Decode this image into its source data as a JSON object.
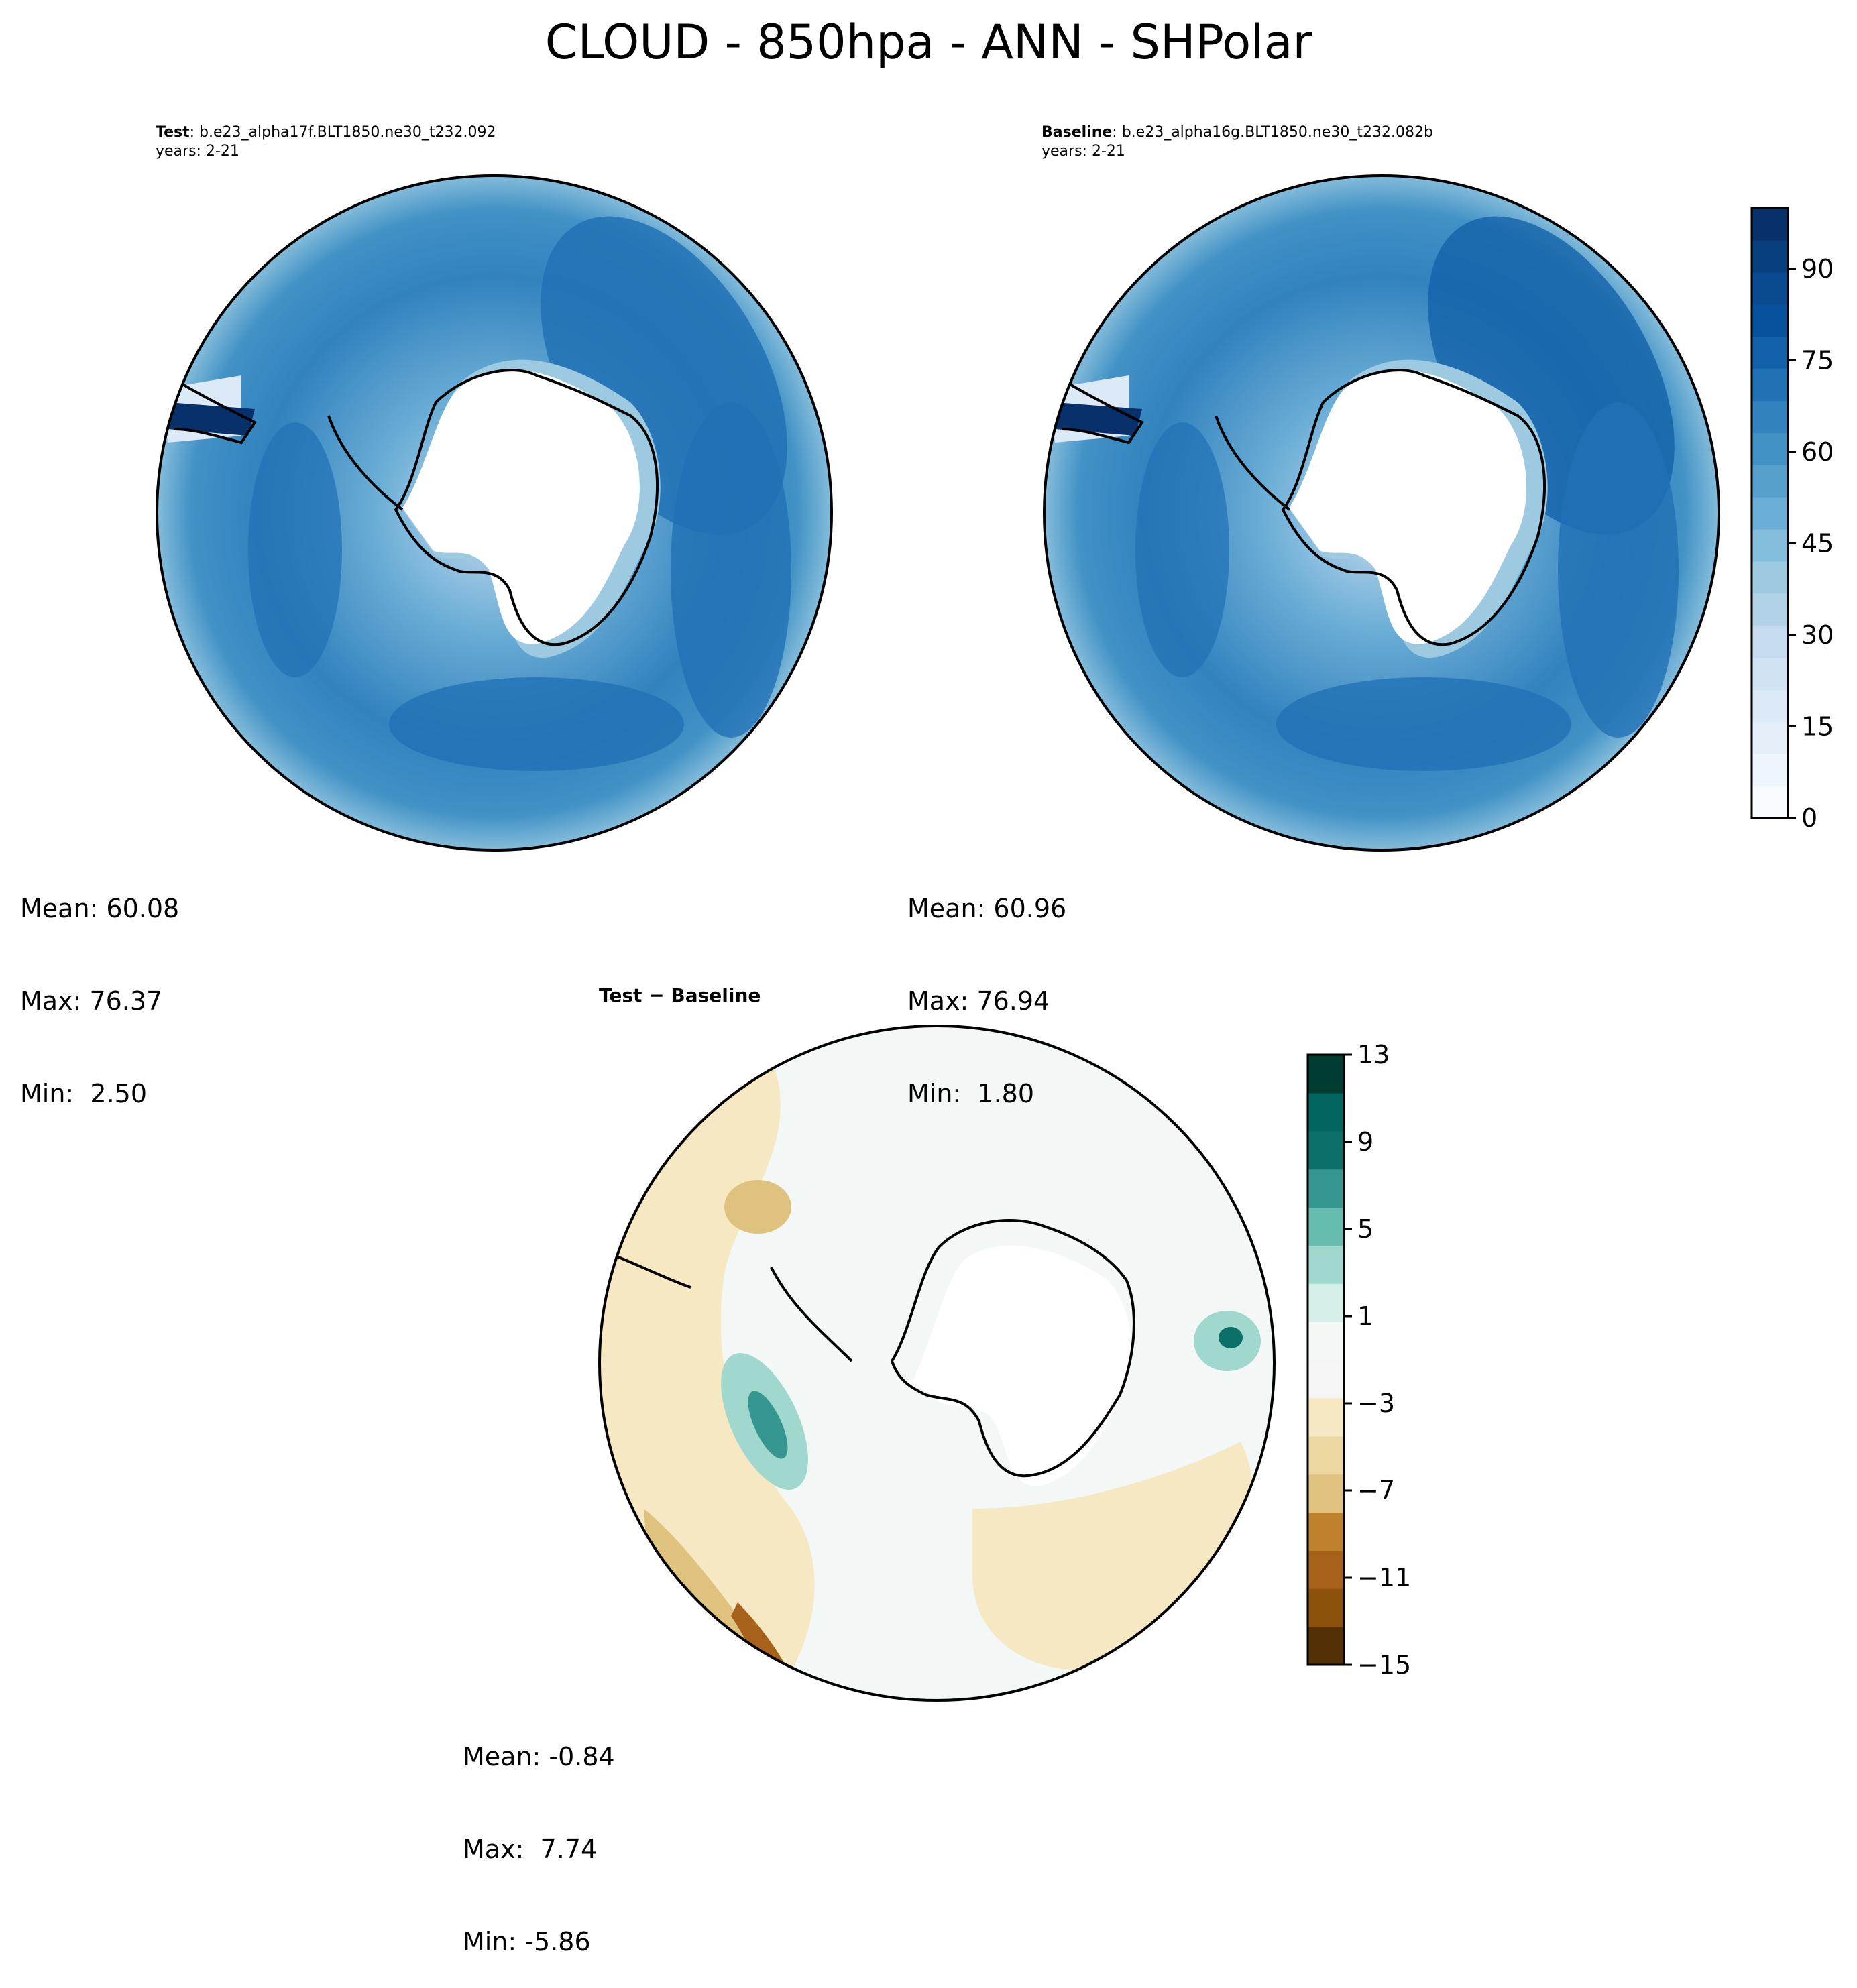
{
  "title": "CLOUD - 850hpa - ANN - SHPolar",
  "chart_data": [
    {
      "type": "heatmap",
      "name_label": "Test",
      "case": ": b.e23_alpha17f.BLT1850.ne30_t232.092",
      "years": "years: 2-21",
      "stats": {
        "mean": "Mean: 60.08",
        "max": "Max: 76.37",
        "min": "Min:  2.50"
      }
    },
    {
      "type": "heatmap",
      "name_label": "Baseline",
      "case": ": b.e23_alpha16g.BLT1850.ne30_t232.082b",
      "years": "years: 2-21",
      "stats": {
        "mean": "Mean: 60.96",
        "max": "Max: 76.94",
        "min": "Min:  1.80"
      }
    },
    {
      "type": "heatmap",
      "title": "Test − Baseline",
      "stats": {
        "mean": "Mean: -0.84",
        "max": "Max:  7.74",
        "min": "Min: -5.86"
      }
    }
  ],
  "colorbars": {
    "abs": {
      "range": [
        0,
        100
      ],
      "ticks": [
        "0",
        "15",
        "30",
        "45",
        "60",
        "75",
        "90"
      ],
      "tick_values": [
        0,
        15,
        30,
        45,
        60,
        75,
        90
      ],
      "colors": [
        "#f7fbff",
        "#eff5fc",
        "#e5eff9",
        "#dce9f6",
        "#d1e2f3",
        "#c6dbef",
        "#b2d2e8",
        "#9ecae1",
        "#84bcdb",
        "#6baed6",
        "#57a0ce",
        "#4292c6",
        "#3282be",
        "#2171b5",
        "#1361a9",
        "#08519c",
        "#0a4a90",
        "#08407e",
        "#08306b"
      ]
    },
    "diff": {
      "range": [
        -15,
        13
      ],
      "ticks": [
        "−15",
        "−11",
        "−7",
        "−3",
        "1",
        "5",
        "9",
        "13"
      ],
      "tick_values": [
        -15,
        -11,
        -7,
        -3,
        1,
        5,
        9,
        13
      ],
      "colors": [
        "#543005",
        "#8c510a",
        "#a6611a",
        "#bf812d",
        "#dfc27d",
        "#ecd7a1",
        "#f6e8c3",
        "#f5f5f5",
        "#f3f7f6",
        "#d4eeea",
        "#a0d8cd",
        "#66bdaf",
        "#35978f",
        "#0d7068",
        "#01665e",
        "#003c30"
      ]
    }
  }
}
